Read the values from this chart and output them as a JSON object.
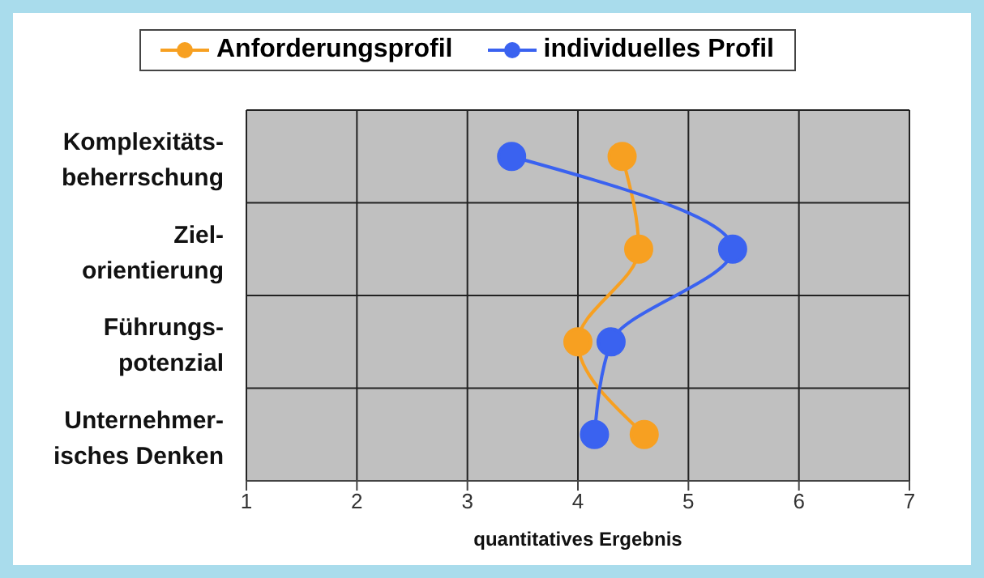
{
  "chart_data": {
    "type": "line",
    "orientation": "horizontal",
    "xlabel": "quantitatives Ergebnis",
    "categories": [
      "Komplexitäts-beherrschung",
      "Ziel-orientierung",
      "Führungs-potenzial",
      "Unternehmer-isches Denken"
    ],
    "series": [
      {
        "name": "Anforderungsprofil",
        "color": "#f7a021",
        "values": [
          4.4,
          4.55,
          4.0,
          4.6
        ]
      },
      {
        "name": "individuelles Profil",
        "color": "#3a62f0",
        "values": [
          3.4,
          5.4,
          4.3,
          4.15
        ]
      }
    ],
    "xlim": [
      1,
      7
    ],
    "xticks": [
      1,
      2,
      3,
      4,
      5,
      6,
      7
    ],
    "grid": true,
    "legend": "top",
    "marker": "circle",
    "line_style": "solid"
  }
}
